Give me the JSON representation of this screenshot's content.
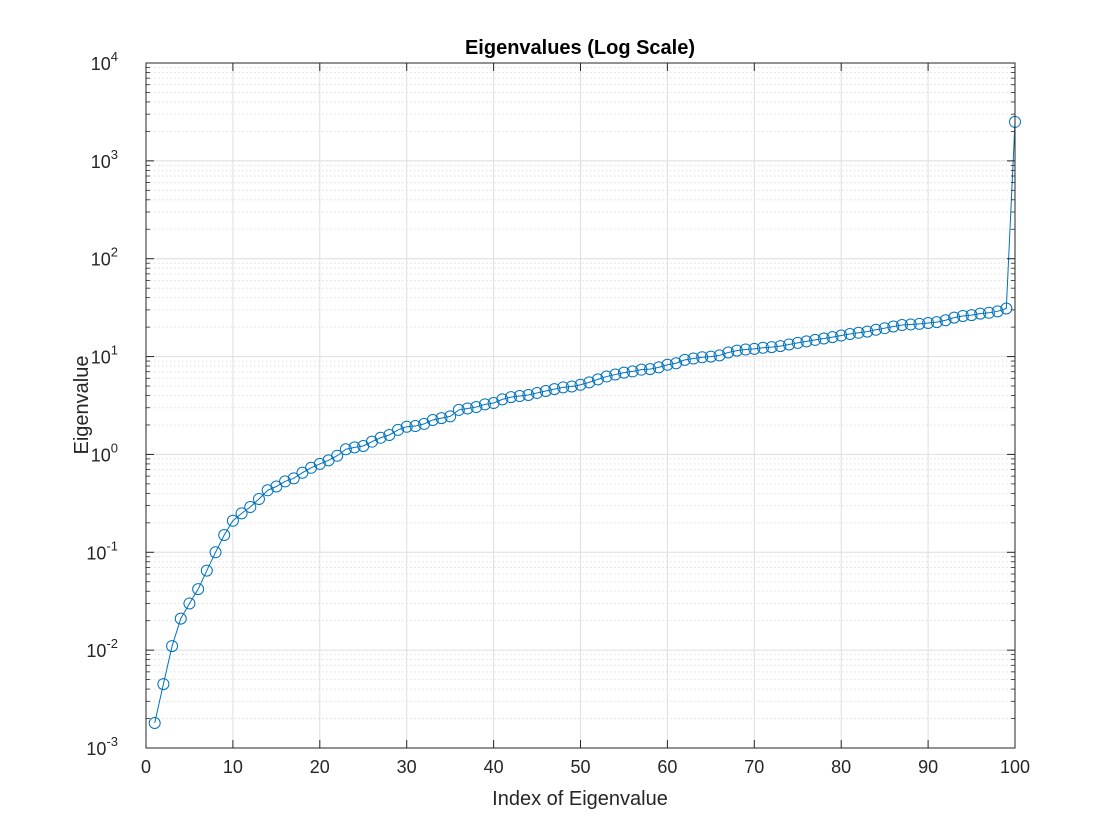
{
  "chart_data": {
    "type": "line",
    "title": "Eigenvalues (Log Scale)",
    "xlabel": "Index of Eigenvalue",
    "ylabel": "Eigenvalue",
    "xlim": [
      0,
      100
    ],
    "ylim": [
      0.001,
      10000
    ],
    "y_scale": "log",
    "x_ticks": [
      0,
      10,
      20,
      30,
      40,
      50,
      60,
      70,
      80,
      90,
      100
    ],
    "y_ticks": [
      {
        "base": "10",
        "exp": "-3"
      },
      {
        "base": "10",
        "exp": "-2"
      },
      {
        "base": "10",
        "exp": "-1"
      },
      {
        "base": "10",
        "exp": "0"
      },
      {
        "base": "10",
        "exp": "1"
      },
      {
        "base": "10",
        "exp": "2"
      },
      {
        "base": "10",
        "exp": "3"
      },
      {
        "base": "10",
        "exp": "4"
      }
    ],
    "grid": true,
    "minor_grid": true,
    "marker": "circle",
    "line_color": "#0072BD",
    "series": [
      {
        "x": [
          1,
          2,
          3,
          4,
          5,
          6,
          7,
          8,
          9,
          10,
          11,
          12,
          13,
          14,
          15,
          16,
          17,
          18,
          19,
          20,
          21,
          22,
          23,
          24,
          25,
          26,
          27,
          28,
          29,
          30,
          31,
          32,
          33,
          34,
          35,
          36,
          37,
          38,
          39,
          40,
          41,
          42,
          43,
          44,
          45,
          46,
          47,
          48,
          49,
          50,
          51,
          52,
          53,
          54,
          55,
          56,
          57,
          58,
          59,
          60,
          61,
          62,
          63,
          64,
          65,
          66,
          67,
          68,
          69,
          70,
          71,
          72,
          73,
          74,
          75,
          76,
          77,
          78,
          79,
          80,
          81,
          82,
          83,
          84,
          85,
          86,
          87,
          88,
          89,
          90,
          91,
          92,
          93,
          94,
          95,
          96,
          97,
          98,
          99,
          100
        ],
        "values": [
          0.0018,
          0.0045,
          0.011,
          0.021,
          0.03,
          0.042,
          0.065,
          0.1,
          0.15,
          0.21,
          0.25,
          0.29,
          0.35,
          0.43,
          0.47,
          0.53,
          0.57,
          0.65,
          0.73,
          0.8,
          0.87,
          0.97,
          1.13,
          1.18,
          1.22,
          1.35,
          1.48,
          1.58,
          1.78,
          1.92,
          1.95,
          2.05,
          2.25,
          2.35,
          2.45,
          2.85,
          2.95,
          3.05,
          3.25,
          3.35,
          3.65,
          3.85,
          3.95,
          4.05,
          4.25,
          4.45,
          4.65,
          4.85,
          4.95,
          5.15,
          5.45,
          5.85,
          6.25,
          6.55,
          6.85,
          7.05,
          7.35,
          7.45,
          7.75,
          8.25,
          8.55,
          9.25,
          9.55,
          9.85,
          10.0,
          10.3,
          11.0,
          11.5,
          11.8,
          12.0,
          12.3,
          12.5,
          12.8,
          13.3,
          13.8,
          14.3,
          14.8,
          15.3,
          15.8,
          16.4,
          17.0,
          17.5,
          18.0,
          18.8,
          19.5,
          20.3,
          21.0,
          21.3,
          21.6,
          22.0,
          22.5,
          23.5,
          25.0,
          26.0,
          26.5,
          27.5,
          28.0,
          29.0,
          31.0,
          2500
        ]
      }
    ]
  }
}
